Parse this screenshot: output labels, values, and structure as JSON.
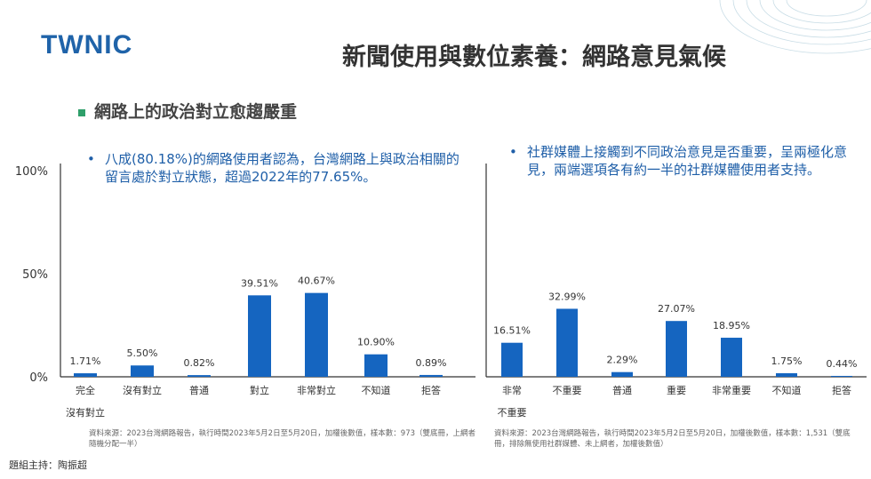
{
  "header": {
    "logo_text": "TWNIC",
    "title": "新聞使用與數位素養：網路意見氣候"
  },
  "section_heading": "網路上的政治對立愈趨嚴重",
  "left_panel": {
    "bullet": "八成(80.18%)的網路使用者認為，台灣網路上與政治相關的留言處於對立狀態，超過2022年的77.65%。",
    "source_note": "資料來源：2023台灣網路報告，執行時間2023年5月2日至5月20日，加權後數值，樣本數：973（雙底冊，上網者隨機分配一半）"
  },
  "right_panel": {
    "bullet": "社群媒體上接觸到不同政治意見是否重要，呈兩極化意見，兩端選項各有約一半的社群媒體使用者支持。",
    "source_note": "資料來源：2023台灣網路報告，執行時間2023年5月2日至5月20日，加權後數值，樣本數：1,531（雙底冊，排除無使用社群媒體、未上網者，加權後數值）"
  },
  "footer": {
    "host": "題組主持：陶振超"
  },
  "colors": {
    "bar": "#1565c0",
    "accent": "#2f9f6a",
    "bullet_text": "#1f5fa8"
  },
  "chart_data": [
    {
      "type": "bar",
      "categories": [
        "完全沒有對立",
        "沒有對立",
        "普通",
        "對立",
        "非常對立",
        "不知道",
        "拒答"
      ],
      "values": [
        1.71,
        5.5,
        0.82,
        39.51,
        40.67,
        10.9,
        0.89
      ],
      "value_labels": [
        "1.71%",
        "5.50%",
        "0.82%",
        "39.51%",
        "40.67%",
        "10.90%",
        "0.89%"
      ],
      "ytick_labels": [
        "100%",
        "50%",
        "0%"
      ],
      "yticks": [
        100,
        50,
        0
      ],
      "ylim": [
        0,
        100
      ]
    },
    {
      "type": "bar",
      "categories": [
        "非常不重要",
        "不重要",
        "普通",
        "重要",
        "非常重要",
        "不知道",
        "拒答"
      ],
      "values": [
        16.51,
        32.99,
        2.29,
        27.07,
        18.95,
        1.75,
        0.44
      ],
      "value_labels": [
        "16.51%",
        "32.99%",
        "2.29%",
        "27.07%",
        "18.95%",
        "1.75%",
        "0.44%"
      ],
      "ylim": [
        0,
        100
      ]
    }
  ]
}
